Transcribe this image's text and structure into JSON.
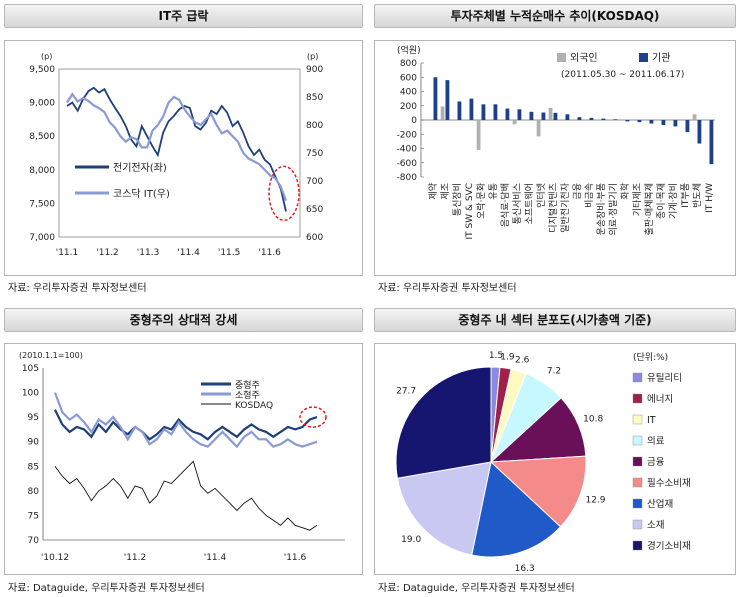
{
  "panels": {
    "tl": {
      "title": "IT주 급락",
      "source": "자료: 우리투자증권  투자정보센터"
    },
    "tr": {
      "title": "투자주체별 누적순매수 추이(KOSDAQ)",
      "source": "자료: 우리투자증권  투자정보센터"
    },
    "bl": {
      "title": "중형주의 상대적 강세",
      "source": "자료: Dataguide,  우리투자증권  투자정보센터"
    },
    "br": {
      "title": "중형주 내 섹터 분포도(시가총액 기준)",
      "source": "자료: Dataguide,  우리투자증권  투자정보센터"
    }
  },
  "chart_data": [
    {
      "type": "line",
      "title": "IT주 급락",
      "y_left_unit": "(p)",
      "y_right_unit": "(p)",
      "y_left_ticks": [
        "7,000",
        "7,500",
        "8,000",
        "8,500",
        "9,000",
        "9,500"
      ],
      "y_right_ticks": [
        "600",
        "650",
        "700",
        "750",
        "800",
        "850",
        "900"
      ],
      "ylim_left": [
        7000,
        9500
      ],
      "ylim_right": [
        600,
        900
      ],
      "x_ticks": [
        "'11.1",
        "'11.2",
        "'11.3",
        "'11.4",
        "'11.5",
        "'11.6"
      ],
      "series": [
        {
          "name": "전기전자(좌)",
          "axis": "left",
          "color": "#1f3f7a",
          "values": [
            8950,
            9000,
            8880,
            9050,
            9170,
            9220,
            9150,
            9200,
            9050,
            8920,
            8800,
            8650,
            8450,
            8350,
            8650,
            8500,
            8350,
            8220,
            8550,
            8720,
            8800,
            8900,
            8950,
            8920,
            8650,
            8600,
            8700,
            8880,
            8830,
            8950,
            8850,
            8650,
            8720,
            8550,
            8350,
            8220,
            8300,
            8150,
            8080,
            7900,
            7720,
            7380
          ]
        },
        {
          "name": "코스닥 IT(우)",
          "axis": "right",
          "color": "#8a9ad4",
          "values": [
            840,
            855,
            842,
            848,
            843,
            835,
            830,
            823,
            805,
            795,
            780,
            770,
            778,
            775,
            760,
            760,
            790,
            800,
            815,
            840,
            850,
            845,
            828,
            815,
            805,
            800,
            810,
            820,
            800,
            785,
            790,
            780,
            770,
            750,
            740,
            735,
            730,
            720,
            710,
            705,
            690,
            665
          ]
        }
      ],
      "annotation": "dashed red circle on latest drop"
    },
    {
      "type": "bar",
      "title": "투자주체별 누적순매수 추이(KOSDAQ)",
      "ylabel": "(억원)",
      "subtitle": "(2011.05.30 ~ 2011.06.17)",
      "ylim": [
        -800,
        800
      ],
      "y_ticks": [
        "-800",
        "-600",
        "-400",
        "-200",
        "0",
        "200",
        "400",
        "600",
        "800"
      ],
      "categories": [
        "제약",
        "제조",
        "통신장비",
        "IT SW & SVC",
        "오락·문화",
        "유통",
        "음식료·담배",
        "통신서비스",
        "소프트웨어",
        "인터넷",
        "디지털컨텐츠",
        "일반전기전자",
        "금융",
        "비금속",
        "운송장비·부품",
        "의료·정밀기기",
        "화학",
        "기타제조",
        "출판·매체복제",
        "종이·목재",
        "기계·장비",
        "IT부품",
        "반도체",
        "IT H/W"
      ],
      "series": [
        {
          "name": "외국인",
          "color": "#b0b0b0",
          "values": [
            0,
            190,
            0,
            0,
            -420,
            0,
            0,
            -60,
            0,
            -230,
            170,
            0,
            0,
            0,
            0,
            0,
            0,
            0,
            0,
            0,
            0,
            0,
            80,
            0
          ]
        },
        {
          "name": "기관",
          "color": "#1f3f8a",
          "values": [
            600,
            560,
            260,
            300,
            220,
            220,
            160,
            150,
            115,
            105,
            100,
            80,
            40,
            30,
            20,
            10,
            -20,
            -30,
            -50,
            -70,
            -90,
            -170,
            -330,
            -620
          ]
        }
      ]
    },
    {
      "type": "line",
      "title": "중형주의 상대적 강세",
      "ylabel": "(2010.1.1=100)",
      "ylim": [
        70,
        105
      ],
      "y_ticks": [
        "70",
        "75",
        "80",
        "85",
        "90",
        "95",
        "100",
        "105"
      ],
      "x_ticks": [
        "'10.12",
        "'11.2",
        "'11.4",
        "'11.6"
      ],
      "series": [
        {
          "name": "중형주",
          "color": "#1f3f7a",
          "values": [
            96.5,
            93.5,
            92.0,
            93.0,
            92.5,
            91.0,
            93.5,
            92.0,
            94.0,
            92.5,
            91.5,
            93.0,
            92.0,
            90.5,
            91.5,
            93.0,
            92.5,
            94.5,
            93.0,
            92.0,
            91.5,
            90.5,
            92.0,
            93.0,
            92.0,
            91.0,
            92.5,
            93.5,
            92.5,
            92.0,
            91.0,
            92.0,
            93.0,
            92.5,
            93.0,
            94.5,
            95.0
          ]
        },
        {
          "name": "소형주",
          "color": "#8a9ad4",
          "values": [
            100.0,
            96.0,
            94.5,
            95.5,
            94.0,
            92.0,
            94.5,
            93.5,
            95.0,
            93.0,
            90.5,
            93.0,
            92.0,
            89.5,
            90.5,
            92.5,
            91.5,
            94.0,
            92.0,
            90.5,
            89.5,
            89.0,
            90.5,
            92.0,
            90.5,
            89.0,
            91.0,
            92.0,
            90.5,
            90.5,
            89.0,
            89.5,
            90.5,
            89.5,
            89.0,
            89.5,
            90.0
          ]
        },
        {
          "name": "KOSDAQ",
          "color": "#111111",
          "values": [
            85.0,
            83.0,
            81.5,
            82.5,
            80.5,
            78.0,
            80.0,
            81.0,
            82.5,
            81.0,
            78.5,
            81.0,
            80.5,
            77.5,
            79.0,
            82.0,
            81.5,
            83.0,
            84.5,
            86.0,
            81.0,
            79.5,
            80.5,
            79.0,
            77.5,
            76.0,
            77.5,
            78.5,
            76.5,
            75.0,
            74.0,
            73.0,
            74.5,
            73.0,
            72.5,
            72.0,
            73.0
          ]
        }
      ],
      "annotation": "dashed red circle on 중형주 endpoint"
    },
    {
      "type": "pie",
      "title": "중형주 내 섹터 분포도(시가총액 기준)",
      "unit_label": "(단위:%)",
      "slices": [
        {
          "label": "유틸리티",
          "value": 1.5,
          "display": "1.5",
          "color": "#8a8ae0"
        },
        {
          "label": "에너지",
          "value": 1.9,
          "display": "1.9",
          "color": "#a0204a"
        },
        {
          "label": "IT",
          "value": 2.6,
          "display": "2.6",
          "color": "#fffac0"
        },
        {
          "label": "의료",
          "value": 7.2,
          "display": "7.2",
          "color": "#c8f8ff"
        },
        {
          "label": "금융",
          "value": 10.8,
          "display": "10.8",
          "color": "#6a1058"
        },
        {
          "label": "필수소비재",
          "value": 12.9,
          "display": "12.9",
          "color": "#f48a8a"
        },
        {
          "label": "산업재",
          "value": 16.3,
          "display": "16.3",
          "color": "#1f5ac8"
        },
        {
          "label": "소재",
          "value": 19.0,
          "display": "19.0",
          "color": "#c8c8f2"
        },
        {
          "label": "경기소비재",
          "value": 27.7,
          "display": "27.7",
          "color": "#161670"
        }
      ]
    }
  ]
}
